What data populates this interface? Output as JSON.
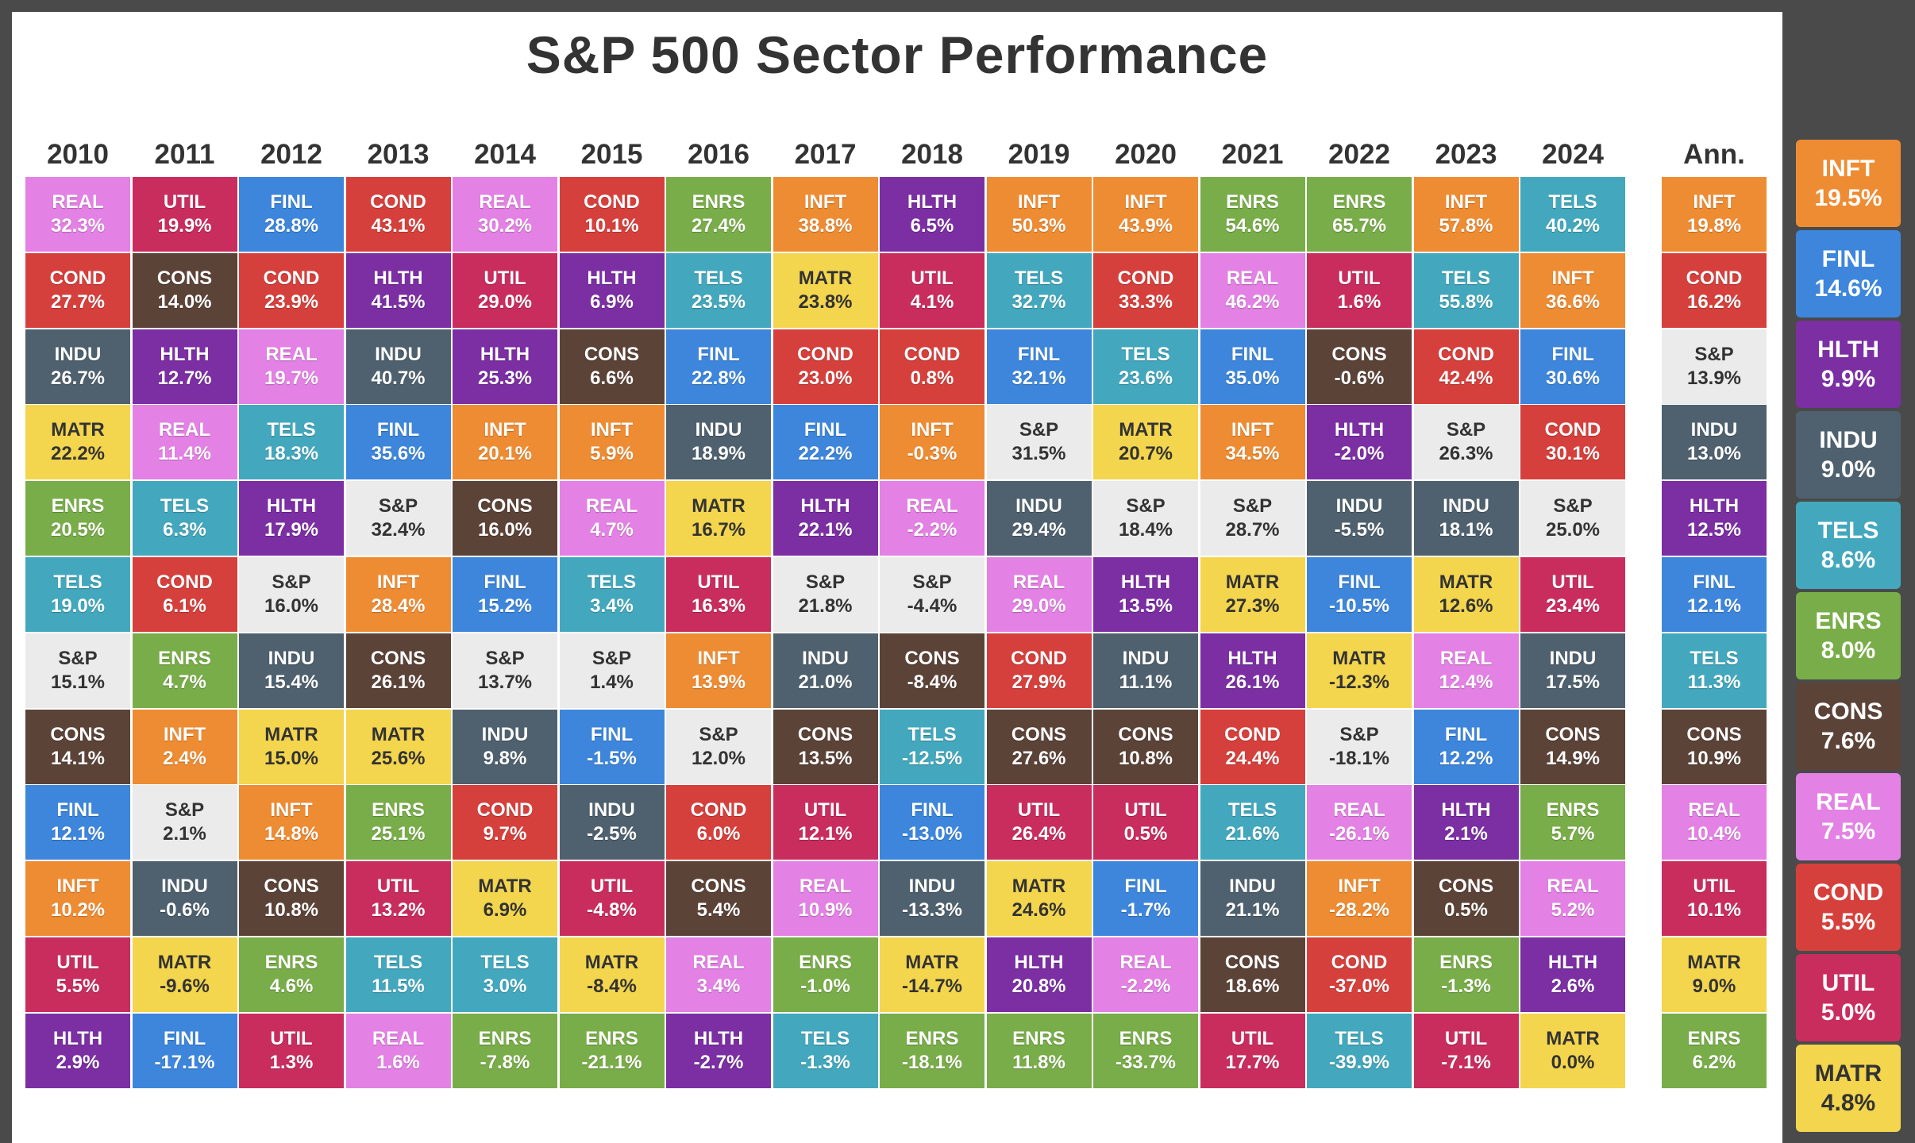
{
  "title": "S&P 500 Sector Performance",
  "chart_data": {
    "type": "table",
    "years": [
      "2010",
      "2011",
      "2012",
      "2013",
      "2014",
      "2015",
      "2016",
      "2017",
      "2018",
      "2019",
      "2020",
      "2021",
      "2022",
      "2023",
      "2024"
    ],
    "annualized_label": "Ann.",
    "columns": [
      [
        [
          "REAL",
          "32.3%"
        ],
        [
          "COND",
          "27.7%"
        ],
        [
          "INDU",
          "26.7%"
        ],
        [
          "MATR",
          "22.2%"
        ],
        [
          "ENRS",
          "20.5%"
        ],
        [
          "TELS",
          "19.0%"
        ],
        [
          "S&P",
          "15.1%"
        ],
        [
          "CONS",
          "14.1%"
        ],
        [
          "FINL",
          "12.1%"
        ],
        [
          "INFT",
          "10.2%"
        ],
        [
          "UTIL",
          "5.5%"
        ],
        [
          "HLTH",
          "2.9%"
        ]
      ],
      [
        [
          "UTIL",
          "19.9%"
        ],
        [
          "CONS",
          "14.0%"
        ],
        [
          "HLTH",
          "12.7%"
        ],
        [
          "REAL",
          "11.4%"
        ],
        [
          "TELS",
          "6.3%"
        ],
        [
          "COND",
          "6.1%"
        ],
        [
          "ENRS",
          "4.7%"
        ],
        [
          "INFT",
          "2.4%"
        ],
        [
          "S&P",
          "2.1%"
        ],
        [
          "INDU",
          "-0.6%"
        ],
        [
          "MATR",
          "-9.6%"
        ],
        [
          "FINL",
          "-17.1%"
        ]
      ],
      [
        [
          "FINL",
          "28.8%"
        ],
        [
          "COND",
          "23.9%"
        ],
        [
          "REAL",
          "19.7%"
        ],
        [
          "TELS",
          "18.3%"
        ],
        [
          "HLTH",
          "17.9%"
        ],
        [
          "S&P",
          "16.0%"
        ],
        [
          "INDU",
          "15.4%"
        ],
        [
          "MATR",
          "15.0%"
        ],
        [
          "INFT",
          "14.8%"
        ],
        [
          "CONS",
          "10.8%"
        ],
        [
          "ENRS",
          "4.6%"
        ],
        [
          "UTIL",
          "1.3%"
        ]
      ],
      [
        [
          "COND",
          "43.1%"
        ],
        [
          "HLTH",
          "41.5%"
        ],
        [
          "INDU",
          "40.7%"
        ],
        [
          "FINL",
          "35.6%"
        ],
        [
          "S&P",
          "32.4%"
        ],
        [
          "INFT",
          "28.4%"
        ],
        [
          "CONS",
          "26.1%"
        ],
        [
          "MATR",
          "25.6%"
        ],
        [
          "ENRS",
          "25.1%"
        ],
        [
          "UTIL",
          "13.2%"
        ],
        [
          "TELS",
          "11.5%"
        ],
        [
          "REAL",
          "1.6%"
        ]
      ],
      [
        [
          "REAL",
          "30.2%"
        ],
        [
          "UTIL",
          "29.0%"
        ],
        [
          "HLTH",
          "25.3%"
        ],
        [
          "INFT",
          "20.1%"
        ],
        [
          "CONS",
          "16.0%"
        ],
        [
          "FINL",
          "15.2%"
        ],
        [
          "S&P",
          "13.7%"
        ],
        [
          "INDU",
          "9.8%"
        ],
        [
          "COND",
          "9.7%"
        ],
        [
          "MATR",
          "6.9%"
        ],
        [
          "TELS",
          "3.0%"
        ],
        [
          "ENRS",
          "-7.8%"
        ]
      ],
      [
        [
          "COND",
          "10.1%"
        ],
        [
          "HLTH",
          "6.9%"
        ],
        [
          "CONS",
          "6.6%"
        ],
        [
          "INFT",
          "5.9%"
        ],
        [
          "REAL",
          "4.7%"
        ],
        [
          "TELS",
          "3.4%"
        ],
        [
          "S&P",
          "1.4%"
        ],
        [
          "FINL",
          "-1.5%"
        ],
        [
          "INDU",
          "-2.5%"
        ],
        [
          "UTIL",
          "-4.8%"
        ],
        [
          "MATR",
          "-8.4%"
        ],
        [
          "ENRS",
          "-21.1%"
        ]
      ],
      [
        [
          "ENRS",
          "27.4%"
        ],
        [
          "TELS",
          "23.5%"
        ],
        [
          "FINL",
          "22.8%"
        ],
        [
          "INDU",
          "18.9%"
        ],
        [
          "MATR",
          "16.7%"
        ],
        [
          "UTIL",
          "16.3%"
        ],
        [
          "INFT",
          "13.9%"
        ],
        [
          "S&P",
          "12.0%"
        ],
        [
          "COND",
          "6.0%"
        ],
        [
          "CONS",
          "5.4%"
        ],
        [
          "REAL",
          "3.4%"
        ],
        [
          "HLTH",
          "-2.7%"
        ]
      ],
      [
        [
          "INFT",
          "38.8%"
        ],
        [
          "MATR",
          "23.8%"
        ],
        [
          "COND",
          "23.0%"
        ],
        [
          "FINL",
          "22.2%"
        ],
        [
          "HLTH",
          "22.1%"
        ],
        [
          "S&P",
          "21.8%"
        ],
        [
          "INDU",
          "21.0%"
        ],
        [
          "CONS",
          "13.5%"
        ],
        [
          "UTIL",
          "12.1%"
        ],
        [
          "REAL",
          "10.9%"
        ],
        [
          "ENRS",
          "-1.0%"
        ],
        [
          "TELS",
          "-1.3%"
        ]
      ],
      [
        [
          "HLTH",
          "6.5%"
        ],
        [
          "UTIL",
          "4.1%"
        ],
        [
          "COND",
          "0.8%"
        ],
        [
          "INFT",
          "-0.3%"
        ],
        [
          "REAL",
          "-2.2%"
        ],
        [
          "S&P",
          "-4.4%"
        ],
        [
          "CONS",
          "-8.4%"
        ],
        [
          "TELS",
          "-12.5%"
        ],
        [
          "FINL",
          "-13.0%"
        ],
        [
          "INDU",
          "-13.3%"
        ],
        [
          "MATR",
          "-14.7%"
        ],
        [
          "ENRS",
          "-18.1%"
        ]
      ],
      [
        [
          "INFT",
          "50.3%"
        ],
        [
          "TELS",
          "32.7%"
        ],
        [
          "FINL",
          "32.1%"
        ],
        [
          "S&P",
          "31.5%"
        ],
        [
          "INDU",
          "29.4%"
        ],
        [
          "REAL",
          "29.0%"
        ],
        [
          "COND",
          "27.9%"
        ],
        [
          "CONS",
          "27.6%"
        ],
        [
          "UTIL",
          "26.4%"
        ],
        [
          "MATR",
          "24.6%"
        ],
        [
          "HLTH",
          "20.8%"
        ],
        [
          "ENRS",
          "11.8%"
        ]
      ],
      [
        [
          "INFT",
          "43.9%"
        ],
        [
          "COND",
          "33.3%"
        ],
        [
          "TELS",
          "23.6%"
        ],
        [
          "MATR",
          "20.7%"
        ],
        [
          "S&P",
          "18.4%"
        ],
        [
          "HLTH",
          "13.5%"
        ],
        [
          "INDU",
          "11.1%"
        ],
        [
          "CONS",
          "10.8%"
        ],
        [
          "UTIL",
          "0.5%"
        ],
        [
          "FINL",
          "-1.7%"
        ],
        [
          "REAL",
          "-2.2%"
        ],
        [
          "ENRS",
          "-33.7%"
        ]
      ],
      [
        [
          "ENRS",
          "54.6%"
        ],
        [
          "REAL",
          "46.2%"
        ],
        [
          "FINL",
          "35.0%"
        ],
        [
          "INFT",
          "34.5%"
        ],
        [
          "S&P",
          "28.7%"
        ],
        [
          "MATR",
          "27.3%"
        ],
        [
          "HLTH",
          "26.1%"
        ],
        [
          "COND",
          "24.4%"
        ],
        [
          "TELS",
          "21.6%"
        ],
        [
          "INDU",
          "21.1%"
        ],
        [
          "CONS",
          "18.6%"
        ],
        [
          "UTIL",
          "17.7%"
        ]
      ],
      [
        [
          "ENRS",
          "65.7%"
        ],
        [
          "UTIL",
          "1.6%"
        ],
        [
          "CONS",
          "-0.6%"
        ],
        [
          "HLTH",
          "-2.0%"
        ],
        [
          "INDU",
          "-5.5%"
        ],
        [
          "FINL",
          "-10.5%"
        ],
        [
          "MATR",
          "-12.3%"
        ],
        [
          "S&P",
          "-18.1%"
        ],
        [
          "REAL",
          "-26.1%"
        ],
        [
          "INFT",
          "-28.2%"
        ],
        [
          "COND",
          "-37.0%"
        ],
        [
          "TELS",
          "-39.9%"
        ]
      ],
      [
        [
          "INFT",
          "57.8%"
        ],
        [
          "TELS",
          "55.8%"
        ],
        [
          "COND",
          "42.4%"
        ],
        [
          "S&P",
          "26.3%"
        ],
        [
          "INDU",
          "18.1%"
        ],
        [
          "MATR",
          "12.6%"
        ],
        [
          "REAL",
          "12.4%"
        ],
        [
          "FINL",
          "12.2%"
        ],
        [
          "HLTH",
          "2.1%"
        ],
        [
          "CONS",
          "0.5%"
        ],
        [
          "ENRS",
          "-1.3%"
        ],
        [
          "UTIL",
          "-7.1%"
        ]
      ],
      [
        [
          "TELS",
          "40.2%"
        ],
        [
          "INFT",
          "36.6%"
        ],
        [
          "FINL",
          "30.6%"
        ],
        [
          "COND",
          "30.1%"
        ],
        [
          "S&P",
          "25.0%"
        ],
        [
          "UTIL",
          "23.4%"
        ],
        [
          "INDU",
          "17.5%"
        ],
        [
          "CONS",
          "14.9%"
        ],
        [
          "ENRS",
          "5.7%"
        ],
        [
          "REAL",
          "5.2%"
        ],
        [
          "HLTH",
          "2.6%"
        ],
        [
          "MATR",
          "0.0%"
        ]
      ]
    ],
    "annualized": [
      [
        "INFT",
        "19.8%"
      ],
      [
        "COND",
        "16.2%"
      ],
      [
        "S&P",
        "13.9%"
      ],
      [
        "INDU",
        "13.0%"
      ],
      [
        "HLTH",
        "12.5%"
      ],
      [
        "FINL",
        "12.1%"
      ],
      [
        "TELS",
        "11.3%"
      ],
      [
        "CONS",
        "10.9%"
      ],
      [
        "REAL",
        "10.4%"
      ],
      [
        "UTIL",
        "10.1%"
      ],
      [
        "MATR",
        "9.0%"
      ],
      [
        "ENRS",
        "6.2%"
      ]
    ],
    "legend": [
      [
        "INFT",
        "19.5%"
      ],
      [
        "FINL",
        "14.6%"
      ],
      [
        "HLTH",
        "9.9%"
      ],
      [
        "INDU",
        "9.0%"
      ],
      [
        "TELS",
        "8.6%"
      ],
      [
        "ENRS",
        "8.0%"
      ],
      [
        "CONS",
        "7.6%"
      ],
      [
        "REAL",
        "7.5%"
      ],
      [
        "COND",
        "5.5%"
      ],
      [
        "UTIL",
        "5.0%"
      ],
      [
        "MATR",
        "4.8%"
      ]
    ],
    "colors": {
      "INFT": "#ee8c33",
      "FINL": "#3d86db",
      "HLTH": "#7b2fa3",
      "INDU": "#4f616e",
      "TELS": "#43a8bd",
      "ENRS": "#79ad49",
      "CONS": "#5c4338",
      "REAL": "#e381e4",
      "COND": "#d6403c",
      "UTIL": "#c92d5e",
      "MATR": "#f3d54e",
      "S&P": "#ebebeb"
    }
  }
}
